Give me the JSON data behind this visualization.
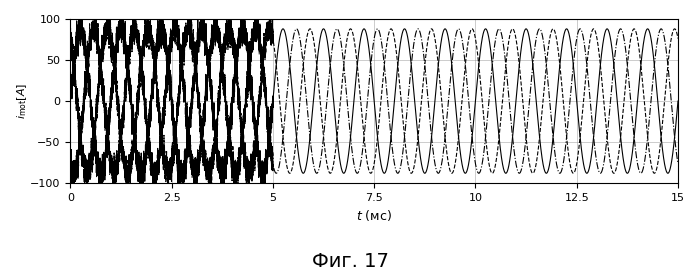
{
  "title": "",
  "ylabel": "$i_{\\mathrm{mot}}[A]$",
  "xlabel": "$t$ (мс)",
  "fig_caption": "Фиг. 17",
  "xlim": [
    0,
    15
  ],
  "ylim": [
    -100,
    100
  ],
  "yticks": [
    -100,
    -50,
    0,
    50,
    100
  ],
  "xticks": [
    0,
    2.5,
    5,
    7.5,
    10,
    12.5,
    15
  ],
  "amplitude": 88,
  "noise_amplitude": 10,
  "frequency_ms": 1.0,
  "phase_shifts_deg": [
    0,
    120,
    240
  ],
  "transition_time": 5.0,
  "noise_freq_factor": 15,
  "line_color": "#000000",
  "background_color": "#ffffff",
  "grid_color": "#888888",
  "linewidth": 0.8
}
